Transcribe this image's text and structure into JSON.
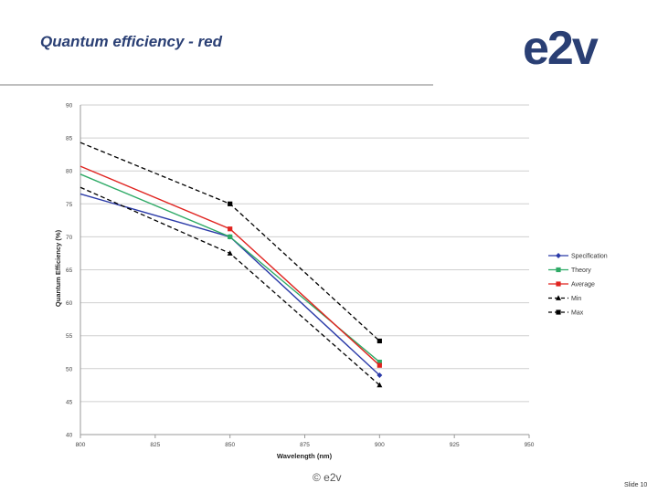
{
  "slide": {
    "title": "Quantum efficiency - red",
    "logo_text": "e2v",
    "footer_copyright": "© e2v",
    "slide_number": "Slide 10"
  },
  "colors": {
    "title": "#2a3f74",
    "logo": "#2a3f74",
    "specification": "#2a3aa8",
    "theory": "#2eaa66",
    "average": "#e0231f",
    "min": "#000000",
    "max": "#000000",
    "grid": "#cfcfcf"
  },
  "chart_data": {
    "type": "line",
    "title": "",
    "xlabel": "Wavelength (nm)",
    "ylabel": "Quantum Efficiency (%)",
    "xlim": [
      800,
      950
    ],
    "ylim": [
      40,
      90
    ],
    "xticks": [
      800,
      825,
      850,
      875,
      900,
      925,
      950
    ],
    "yticks": [
      40,
      45,
      50,
      55,
      60,
      65,
      70,
      75,
      80,
      85,
      90
    ],
    "x": [
      800,
      850,
      900
    ],
    "grid": true,
    "legend_position": "right",
    "series": [
      {
        "name": "Specification",
        "values": [
          76.5,
          70.0,
          49.0
        ],
        "style": "solid",
        "marker": "diamond",
        "color_key": "specification"
      },
      {
        "name": "Theory",
        "values": [
          79.5,
          70.0,
          51.0
        ],
        "style": "solid",
        "marker": "square",
        "color_key": "theory"
      },
      {
        "name": "Average",
        "values": [
          80.7,
          71.2,
          50.5
        ],
        "style": "solid",
        "marker": "square",
        "color_key": "average"
      },
      {
        "name": "Min",
        "values": [
          77.5,
          67.5,
          47.5
        ],
        "style": "dashed",
        "marker": "triangle",
        "color_key": "min"
      },
      {
        "name": "Max",
        "values": [
          84.3,
          75.0,
          54.2
        ],
        "style": "dashed",
        "marker": "square",
        "color_key": "max"
      }
    ]
  }
}
